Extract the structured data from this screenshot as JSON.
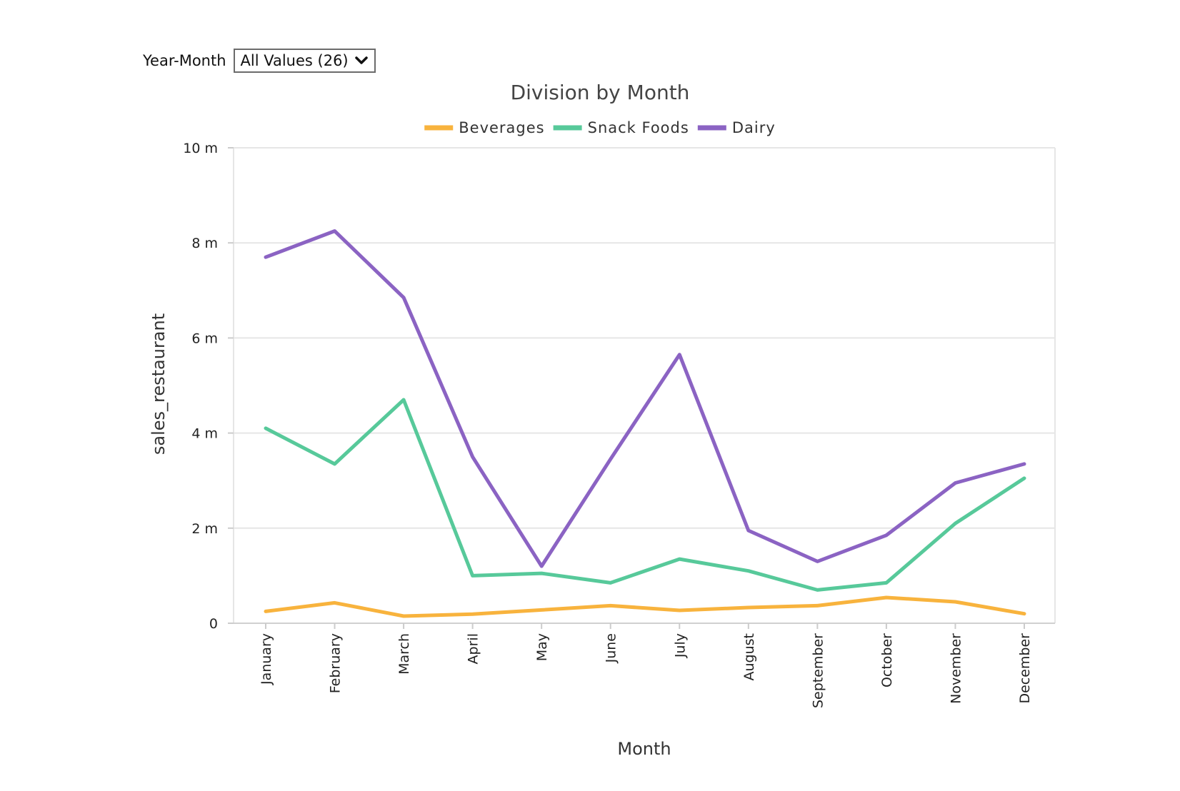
{
  "filter": {
    "label": "Year-Month",
    "selected": "All Values (26)"
  },
  "icons": {
    "dropdown": "chevron-down-icon"
  },
  "chart_data": {
    "type": "line",
    "title": "Division by Month",
    "xlabel": "Month",
    "ylabel": "sales_restaurant",
    "ylim": [
      0,
      10000000
    ],
    "yticks": [
      {
        "value": 0,
        "label": "0"
      },
      {
        "value": 2000000,
        "label": "2 m"
      },
      {
        "value": 4000000,
        "label": "4 m"
      },
      {
        "value": 6000000,
        "label": "6 m"
      },
      {
        "value": 8000000,
        "label": "8 m"
      },
      {
        "value": 10000000,
        "label": "10 m"
      }
    ],
    "grid": true,
    "legend_position": "top",
    "categories": [
      "January",
      "February",
      "March",
      "April",
      "May",
      "June",
      "July",
      "August",
      "September",
      "October",
      "November",
      "December"
    ],
    "series": [
      {
        "name": "Beverages",
        "color": "#f8b33d",
        "values": [
          250000,
          430000,
          150000,
          190000,
          280000,
          370000,
          270000,
          330000,
          370000,
          540000,
          450000,
          200000
        ]
      },
      {
        "name": "Snack Foods",
        "color": "#57c99a",
        "values": [
          4100000,
          3350000,
          4700000,
          1000000,
          1050000,
          850000,
          1350000,
          1100000,
          700000,
          850000,
          2100000,
          3050000
        ]
      },
      {
        "name": "Dairy",
        "color": "#8b63c3",
        "values": [
          7700000,
          8250000,
          6850000,
          3500000,
          1200000,
          3450000,
          5650000,
          1950000,
          1300000,
          1850000,
          2950000,
          3350000
        ]
      }
    ]
  }
}
